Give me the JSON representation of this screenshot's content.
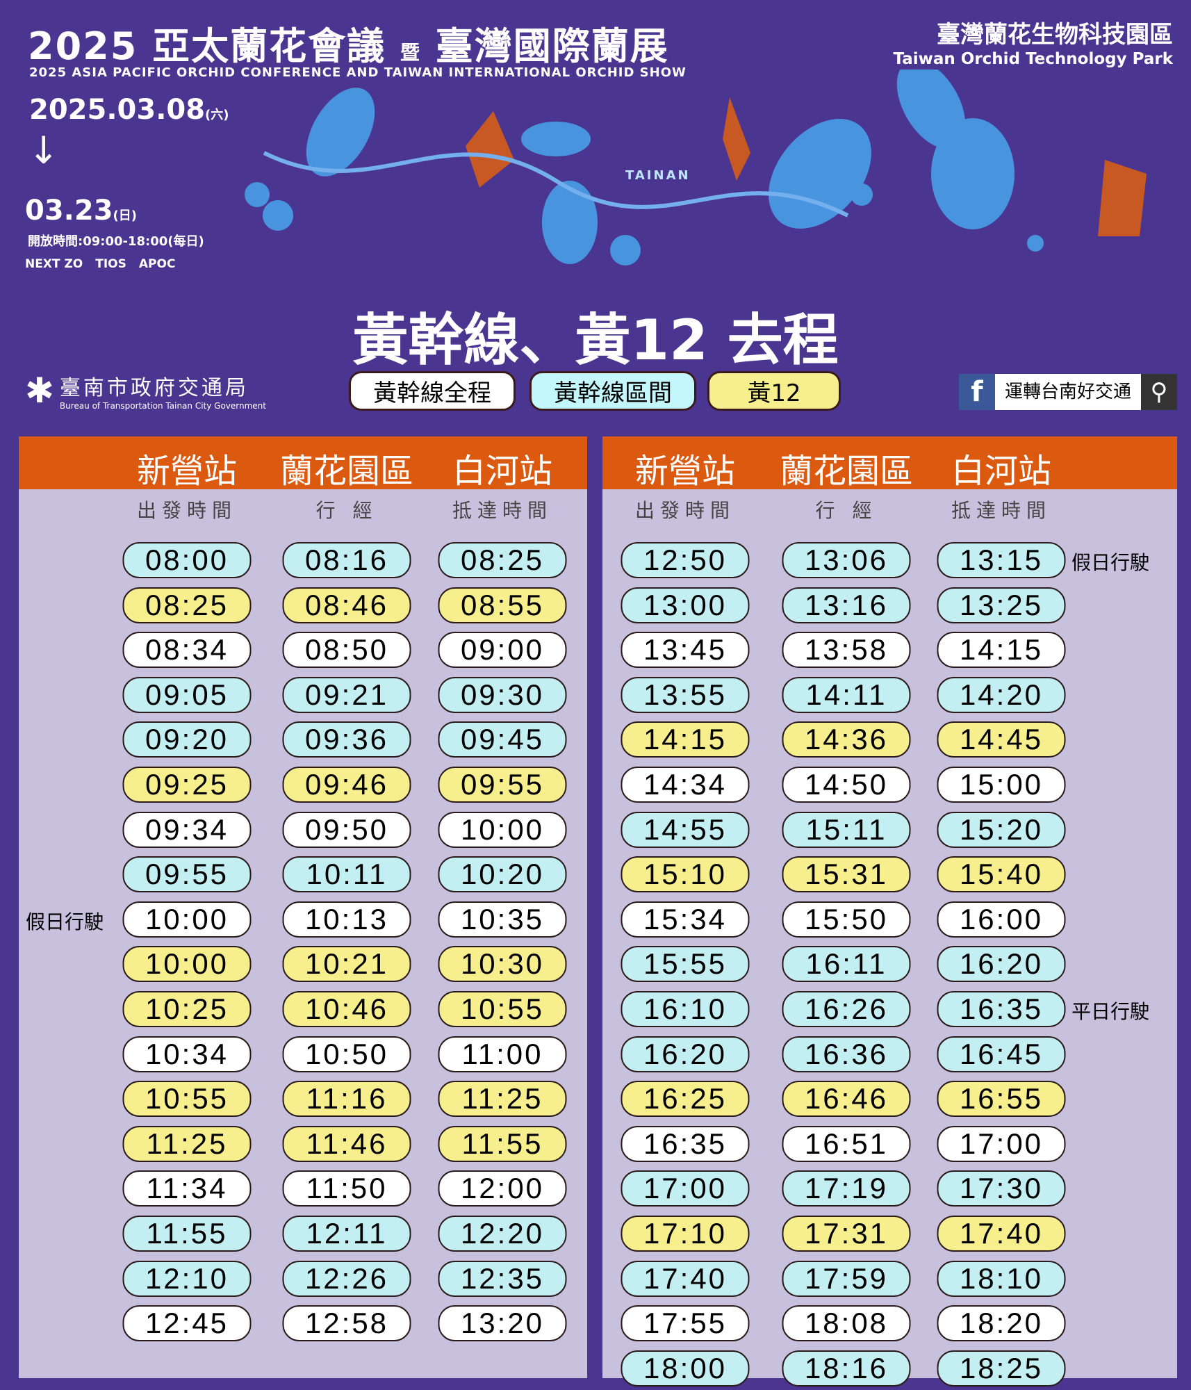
{
  "banner": {
    "title": "2025 亞太蘭花會議",
    "title_join": "暨",
    "title2": "臺灣國際蘭展",
    "subtitle": "2025 ASIA PACIFIC ORCHID CONFERENCE AND TAIWAN INTERNATIONAL ORCHID SHOW",
    "park_zh": "臺灣蘭花生物科技園區",
    "park_en": "Taiwan Orchid Technology Park",
    "start_date": "2025.03.08",
    "start_day": "(六)",
    "end_date": "03.23",
    "end_day": "(日)",
    "hours": "開放時間:09:00-18:00(每日)",
    "logos": [
      "NEXT ZO",
      "TIOS",
      "APOC"
    ],
    "tainan": "TAINAN"
  },
  "route_title": "黃幹線、黃12 去程",
  "bureau": {
    "zh": "臺南市政府交通局",
    "en": "Bureau of Transportation Tainan City Government"
  },
  "tabs": [
    {
      "label": "黃幹線全程",
      "color": "#ffffff"
    },
    {
      "label": "黃幹線區間",
      "color": "#c3f7fb"
    },
    {
      "label": "黃12",
      "color": "#f7ef8e"
    }
  ],
  "facebook": {
    "label": "運轉台南好交通"
  },
  "colors": {
    "c": "#c3eef2",
    "y": "#f7ef8e",
    "w": "#ffffff",
    "header": "#dc5a10",
    "background": "#4a3590"
  },
  "columns": [
    "新營站",
    "蘭花園區",
    "白河站"
  ],
  "subcolumns": [
    "出發時間",
    "行 經",
    "抵達時間"
  ],
  "left_rows": [
    [
      "08:00",
      "08:16",
      "08:25",
      "c"
    ],
    [
      "08:25",
      "08:46",
      "08:55",
      "y"
    ],
    [
      "08:34",
      "08:50",
      "09:00",
      "w"
    ],
    [
      "09:05",
      "09:21",
      "09:30",
      "c"
    ],
    [
      "09:20",
      "09:36",
      "09:45",
      "c"
    ],
    [
      "09:25",
      "09:46",
      "09:55",
      "y"
    ],
    [
      "09:34",
      "09:50",
      "10:00",
      "w"
    ],
    [
      "09:55",
      "10:11",
      "10:20",
      "c"
    ],
    [
      "10:00",
      "10:13",
      "10:35",
      "w",
      "假日行駛"
    ],
    [
      "10:00",
      "10:21",
      "10:30",
      "y"
    ],
    [
      "10:25",
      "10:46",
      "10:55",
      "y"
    ],
    [
      "10:34",
      "10:50",
      "11:00",
      "w"
    ],
    [
      "10:55",
      "11:16",
      "11:25",
      "y"
    ],
    [
      "11:25",
      "11:46",
      "11:55",
      "y"
    ],
    [
      "11:34",
      "11:50",
      "12:00",
      "w"
    ],
    [
      "11:55",
      "12:11",
      "12:20",
      "c"
    ],
    [
      "12:10",
      "12:26",
      "12:35",
      "c"
    ],
    [
      "12:45",
      "12:58",
      "13:20",
      "w"
    ]
  ],
  "right_rows": [
    [
      "12:50",
      "13:06",
      "13:15",
      "c",
      "假日行駛"
    ],
    [
      "13:00",
      "13:16",
      "13:25",
      "c"
    ],
    [
      "13:45",
      "13:58",
      "14:15",
      "w"
    ],
    [
      "13:55",
      "14:11",
      "14:20",
      "c"
    ],
    [
      "14:15",
      "14:36",
      "14:45",
      "y"
    ],
    [
      "14:34",
      "14:50",
      "15:00",
      "w"
    ],
    [
      "14:55",
      "15:11",
      "15:20",
      "c"
    ],
    [
      "15:10",
      "15:31",
      "15:40",
      "y"
    ],
    [
      "15:34",
      "15:50",
      "16:00",
      "w"
    ],
    [
      "15:55",
      "16:11",
      "16:20",
      "c"
    ],
    [
      "16:10",
      "16:26",
      "16:35",
      "c",
      "平日行駛"
    ],
    [
      "16:20",
      "16:36",
      "16:45",
      "c"
    ],
    [
      "16:25",
      "16:46",
      "16:55",
      "y"
    ],
    [
      "16:35",
      "16:51",
      "17:00",
      "w"
    ],
    [
      "17:00",
      "17:19",
      "17:30",
      "c"
    ],
    [
      "17:10",
      "17:31",
      "17:40",
      "y"
    ],
    [
      "17:40",
      "17:59",
      "18:10",
      "c"
    ],
    [
      "17:55",
      "18:08",
      "18:20",
      "w"
    ],
    [
      "18:00",
      "18:16",
      "18:25",
      "c"
    ]
  ]
}
